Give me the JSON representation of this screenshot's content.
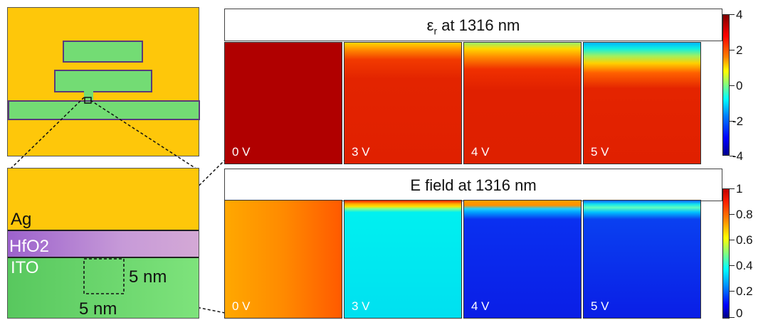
{
  "device_labels": {
    "ag": "Ag",
    "hfo2": "HfO2",
    "ito": "ITO",
    "dim_vertical": "5 nm",
    "dim_horizontal": "5 nm"
  },
  "top_panel": {
    "title_main": "ε",
    "title_sub": "r",
    "title_rest": " at 1316 nm",
    "voltages": [
      "0 V",
      "3 V",
      "4 V",
      "5 V"
    ]
  },
  "bottom_panel": {
    "title": "E field at 1316 nm",
    "voltages": [
      "0 V",
      "3 V",
      "4 V",
      "5 V"
    ]
  },
  "colorbar_eps": {
    "ticks": [
      "4",
      "2",
      "0",
      "-2",
      "-4"
    ],
    "range": [
      -4,
      4
    ]
  },
  "colorbar_field": {
    "ticks": [
      "1",
      "0.8",
      "0.6",
      "0.4",
      "0.2",
      "0"
    ],
    "range": [
      0,
      1
    ]
  },
  "colors": {
    "gold": "#fec70a",
    "ito_green": "#5fd268",
    "hfo2_purple": "#a36ccf",
    "outline": "#5a3a7a",
    "eps_dark_red": "#b00000",
    "eps_red": "#e02000",
    "field_cyan": "#00e0f0",
    "field_blue": "#0a1ee6"
  }
}
